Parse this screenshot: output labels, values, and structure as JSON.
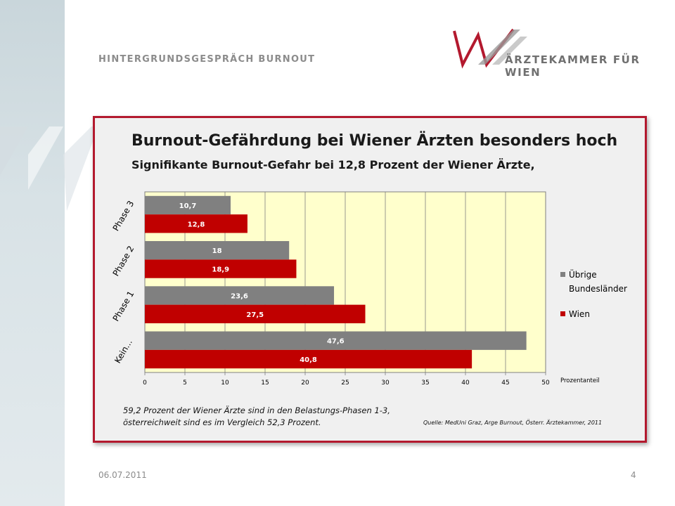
{
  "header": {
    "title": "HINTERGRUNDSGESPRÄCH BURNOUT",
    "logo_text": "ÄRZTEKAMMER FÜR WIEN"
  },
  "colors": {
    "accent": "#b3192e",
    "series_other": "#808080",
    "series_wien": "#c00000",
    "plot_bg": "#ffffcc"
  },
  "chart_data": {
    "type": "bar",
    "orientation": "horizontal",
    "title": "Burnout-Gefährdung bei Wiener Ärzten besonders hoch",
    "subtitle": "Signifikante Burnout-Gefahr bei 12,8 Prozent der Wiener Ärzte,",
    "categories": [
      "Phase 3",
      "Phase 2",
      "Phase 1",
      "Kein..."
    ],
    "series": [
      {
        "name": "Übrige Bundesländer",
        "values": [
          10.7,
          18,
          23.6,
          47.6
        ],
        "labels": [
          "10,7",
          "18",
          "23,6",
          "47,6"
        ],
        "color": "#808080"
      },
      {
        "name": "Wien",
        "values": [
          12.8,
          18.9,
          27.5,
          40.8
        ],
        "labels": [
          "12,8",
          "18,9",
          "27,5",
          "40,8"
        ],
        "color": "#c00000"
      }
    ],
    "xlim": [
      0,
      50
    ],
    "xticks": [
      "0",
      "5",
      "10",
      "15",
      "20",
      "25",
      "30",
      "35",
      "40",
      "45",
      "50"
    ],
    "xlabel": "Prozentanteil",
    "legend_position": "right",
    "grid": true
  },
  "footnote": {
    "line1": "59,2 Prozent der Wiener Ärzte sind in den Belastungs-Phasen 1-3,",
    "line2": "österreichweit sind es im Vergleich 52,3 Prozent."
  },
  "source": "Quelle: MedUni Graz, Arge Burnout, Österr. Ärztekammer, 2011",
  "footer": {
    "date": "06.07.2011",
    "page": "4"
  }
}
